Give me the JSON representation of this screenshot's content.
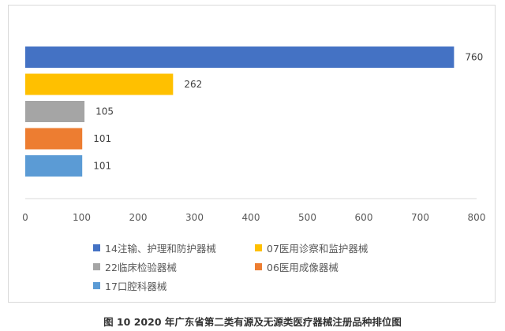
{
  "chart_data": {
    "type": "bar",
    "orientation": "horizontal",
    "categories": [
      "14注输、护理和防护器械",
      "07医用诊察和监护器械",
      "22临床检验器械",
      "06医用成像器械",
      "17口腔科器械"
    ],
    "values": [
      760,
      262,
      105,
      101,
      101
    ],
    "colors": [
      "#4472c4",
      "#ffc000",
      "#a5a5a5",
      "#ed7d31",
      "#5b9bd5"
    ],
    "xlim": [
      0,
      800
    ],
    "xticks": [
      "0",
      "100",
      "200",
      "300",
      "400",
      "500",
      "600",
      "700",
      "800"
    ],
    "grid": false,
    "legend_position": "bottom",
    "caption": "图 10  2020 年广东省第二类有源及无源类医疗器械注册品种排位图"
  }
}
